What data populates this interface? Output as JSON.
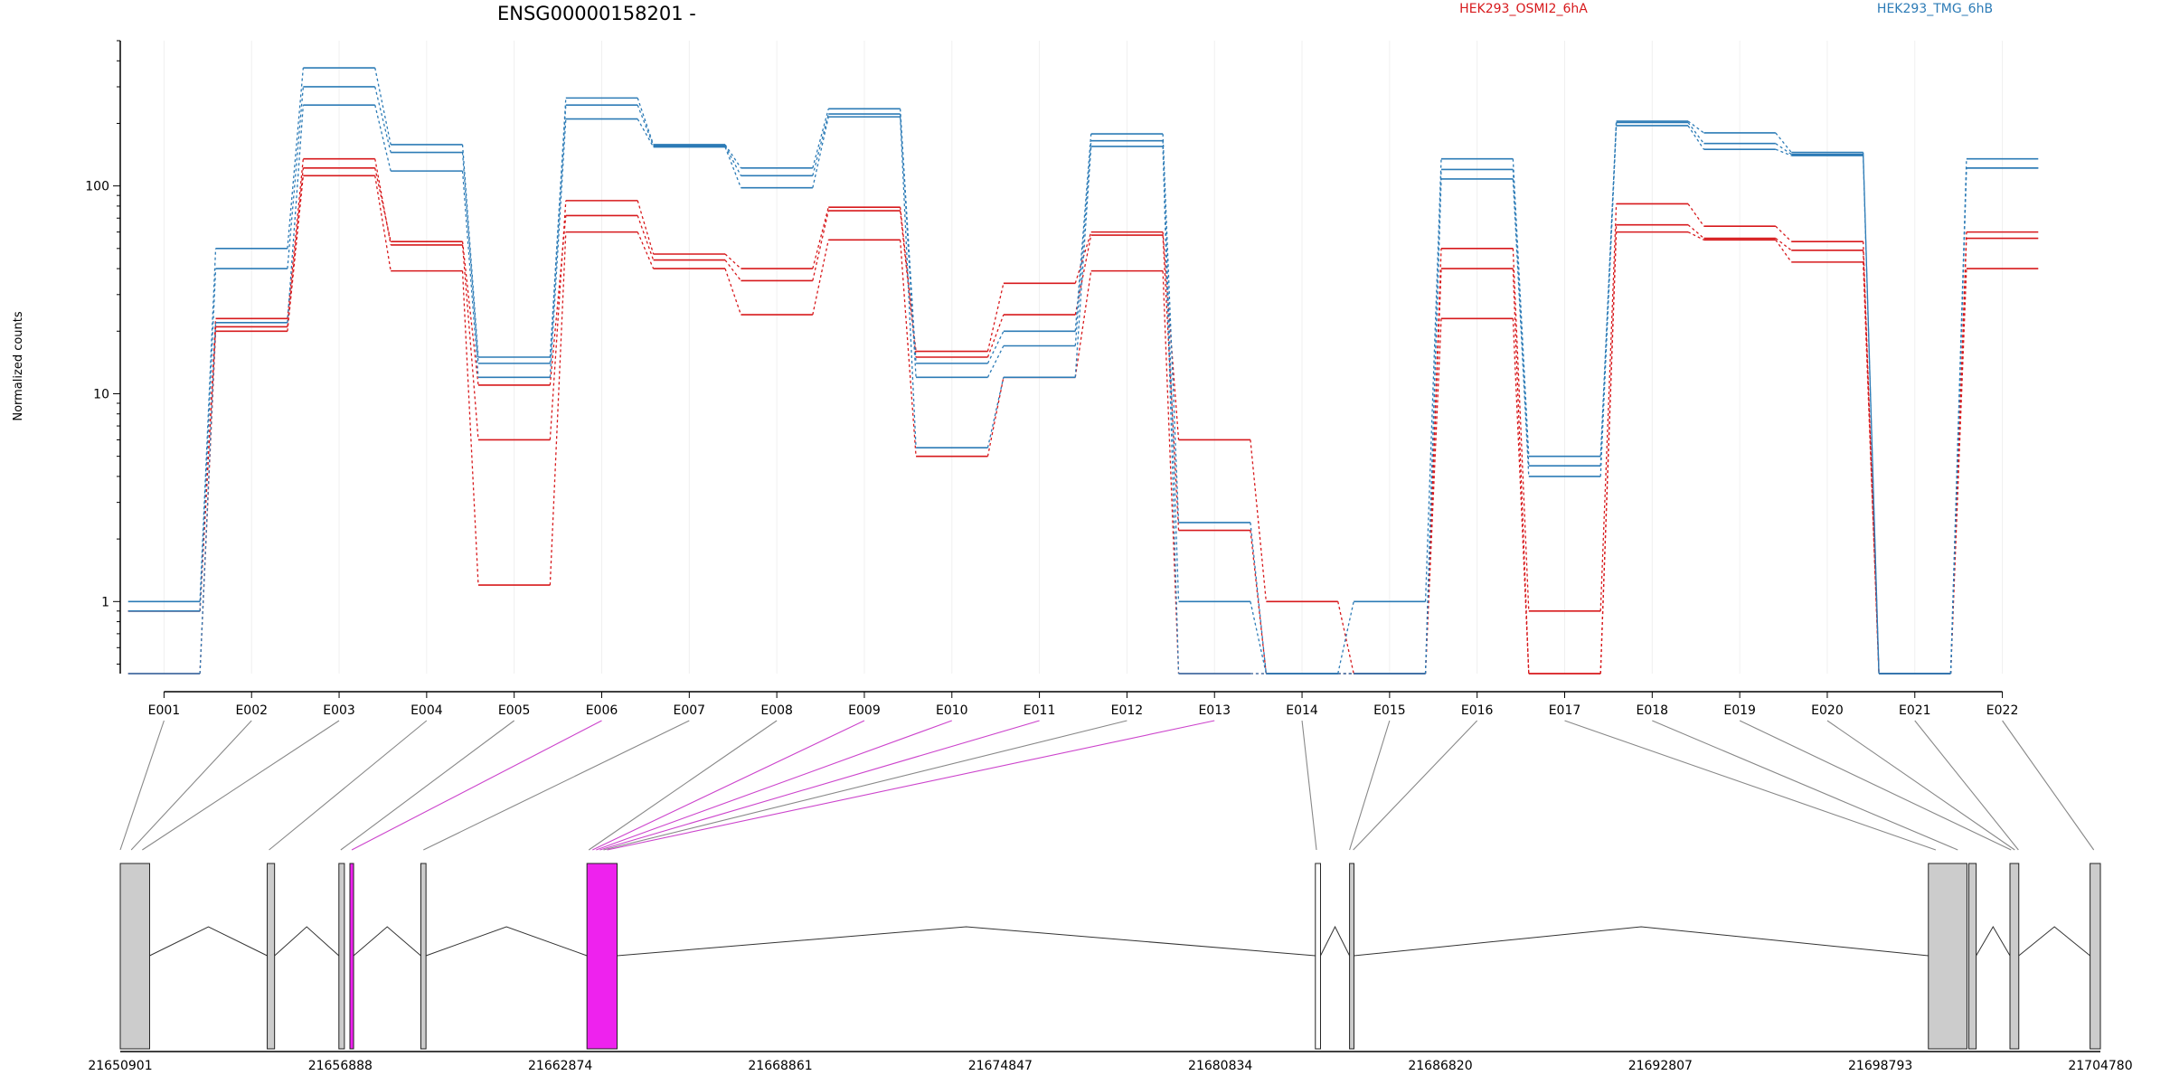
{
  "chart_data": {
    "type": "line",
    "title": "ENSG00000158201 -",
    "ylabel": "Normalized counts",
    "y_scale": "log",
    "ylim": [
      0.45,
      500
    ],
    "y_ticks": [
      1,
      10,
      100
    ],
    "y_tick_labels": [
      "1",
      "10",
      "100"
    ],
    "categories": [
      "E001",
      "E002",
      "E003",
      "E004",
      "E005",
      "E006",
      "E007",
      "E008",
      "E009",
      "E010",
      "E011",
      "E012",
      "E013",
      "E014",
      "E015",
      "E016",
      "E017",
      "E018",
      "E019",
      "E020",
      "E021",
      "E022"
    ],
    "grid": "vertical",
    "legend_position": "top",
    "series": [
      {
        "name": "HEK293_OSMI2_6hA",
        "color": "#d7191c",
        "values": [
          0.9,
          23,
          135,
          52,
          6,
          85,
          47,
          40,
          79,
          16,
          34,
          60,
          6,
          1,
          0.45,
          50,
          0.9,
          82,
          64,
          54,
          0.45,
          60
        ]
      },
      {
        "values": [
          0.9,
          21,
          122,
          54,
          11,
          72,
          44,
          35,
          76,
          15,
          24,
          58,
          2.2,
          0.45,
          0.45,
          40,
          0.45,
          65,
          56,
          49,
          0.45,
          56
        ]
      },
      {
        "values": [
          0.45,
          20,
          112,
          39,
          1.2,
          60,
          40,
          24,
          55,
          5,
          12,
          39,
          0.45,
          0.45,
          0.45,
          23,
          0.45,
          60,
          55,
          43,
          0.45,
          40
        ]
      },
      {
        "name": "HEK293_TMG_6hB",
        "color": "#2c7bb6",
        "values": [
          1,
          50,
          370,
          158,
          15,
          265,
          158,
          122,
          235,
          14,
          20,
          178,
          2.4,
          0.45,
          1,
          135,
          5,
          205,
          180,
          145,
          0.45,
          135
        ]
      },
      {
        "values": [
          0.9,
          40,
          300,
          145,
          14,
          245,
          156,
          112,
          222,
          12,
          17,
          165,
          1,
          0.45,
          0.45,
          120,
          4.5,
          202,
          160,
          142,
          0.45,
          122
        ]
      },
      {
        "values": [
          0.45,
          22,
          245,
          118,
          12,
          210,
          154,
          98,
          215,
          5.5,
          12,
          155,
          0.45,
          0.45,
          0.45,
          108,
          4,
          195,
          150,
          140,
          0.45,
          122
        ]
      }
    ],
    "gene_model": {
      "x_range": [
        21650901,
        21704780
      ],
      "x_ticks": [
        21650901,
        21656888,
        21662874,
        21668861,
        21674847,
        21680834,
        21686820,
        21692807,
        21698793,
        21704780
      ],
      "x_tick_labels": [
        "21650901",
        "21656888",
        "21662874",
        "21668861",
        "21674847",
        "21680834",
        "21686820",
        "21692807",
        "21698793",
        "21704780"
      ],
      "exons": [
        {
          "start": 21650901,
          "end": 21651700,
          "fill": "#cccccc"
        },
        {
          "start": 21654900,
          "end": 21655100,
          "fill": "#cccccc"
        },
        {
          "start": 21656850,
          "end": 21657000,
          "fill": "#cccccc"
        },
        {
          "start": 21657150,
          "end": 21657250,
          "fill": "#ee22ee"
        },
        {
          "start": 21659080,
          "end": 21659220,
          "fill": "#cccccc"
        },
        {
          "start": 21663600,
          "end": 21664420,
          "fill": "#ee22ee"
        },
        {
          "start": 21683420,
          "end": 21683560,
          "fill": "#ffffff"
        },
        {
          "start": 21684350,
          "end": 21684470,
          "fill": "#cccccc"
        },
        {
          "start": 21700100,
          "end": 21701150,
          "fill": "#cccccc"
        },
        {
          "start": 21701200,
          "end": 21701400,
          "fill": "#cccccc"
        },
        {
          "start": 21702320,
          "end": 21702560,
          "fill": "#cccccc"
        },
        {
          "start": 21704500,
          "end": 21704780,
          "fill": "#cccccc"
        }
      ],
      "introns": [
        [
          21651700,
          21654900
        ],
        [
          21655100,
          21656850
        ],
        [
          21657250,
          21659080
        ],
        [
          21659220,
          21663600
        ],
        [
          21664420,
          21683420
        ],
        [
          21683560,
          21684350
        ],
        [
          21684470,
          21700100
        ],
        [
          21701400,
          21702320
        ],
        [
          21702560,
          21704500
        ]
      ],
      "connectors": [
        {
          "bin": "E001",
          "pos": 21650901,
          "highlight": false
        },
        {
          "bin": "E002",
          "pos": 21651200,
          "highlight": false
        },
        {
          "bin": "E003",
          "pos": 21651500,
          "highlight": false
        },
        {
          "bin": "E004",
          "pos": 21654950,
          "highlight": false
        },
        {
          "bin": "E005",
          "pos": 21656900,
          "highlight": false
        },
        {
          "bin": "E006",
          "pos": 21657200,
          "highlight": true
        },
        {
          "bin": "E007",
          "pos": 21659150,
          "highlight": false
        },
        {
          "bin": "E008",
          "pos": 21663650,
          "highlight": false
        },
        {
          "bin": "E009",
          "pos": 21663750,
          "highlight": true
        },
        {
          "bin": "E010",
          "pos": 21663850,
          "highlight": true
        },
        {
          "bin": "E011",
          "pos": 21663950,
          "highlight": true
        },
        {
          "bin": "E012",
          "pos": 21664050,
          "highlight": false
        },
        {
          "bin": "E013",
          "pos": 21664150,
          "highlight": true
        },
        {
          "bin": "E014",
          "pos": 21683450,
          "highlight": false
        },
        {
          "bin": "E015",
          "pos": 21684350,
          "highlight": false
        },
        {
          "bin": "E016",
          "pos": 21684450,
          "highlight": false
        },
        {
          "bin": "E017",
          "pos": 21700300,
          "highlight": false
        },
        {
          "bin": "E018",
          "pos": 21700900,
          "highlight": false
        },
        {
          "bin": "E019",
          "pos": 21702350,
          "highlight": false
        },
        {
          "bin": "E020",
          "pos": 21702450,
          "highlight": false
        },
        {
          "bin": "E021",
          "pos": 21702550,
          "highlight": false
        },
        {
          "bin": "E022",
          "pos": 21704600,
          "highlight": false
        }
      ]
    }
  }
}
